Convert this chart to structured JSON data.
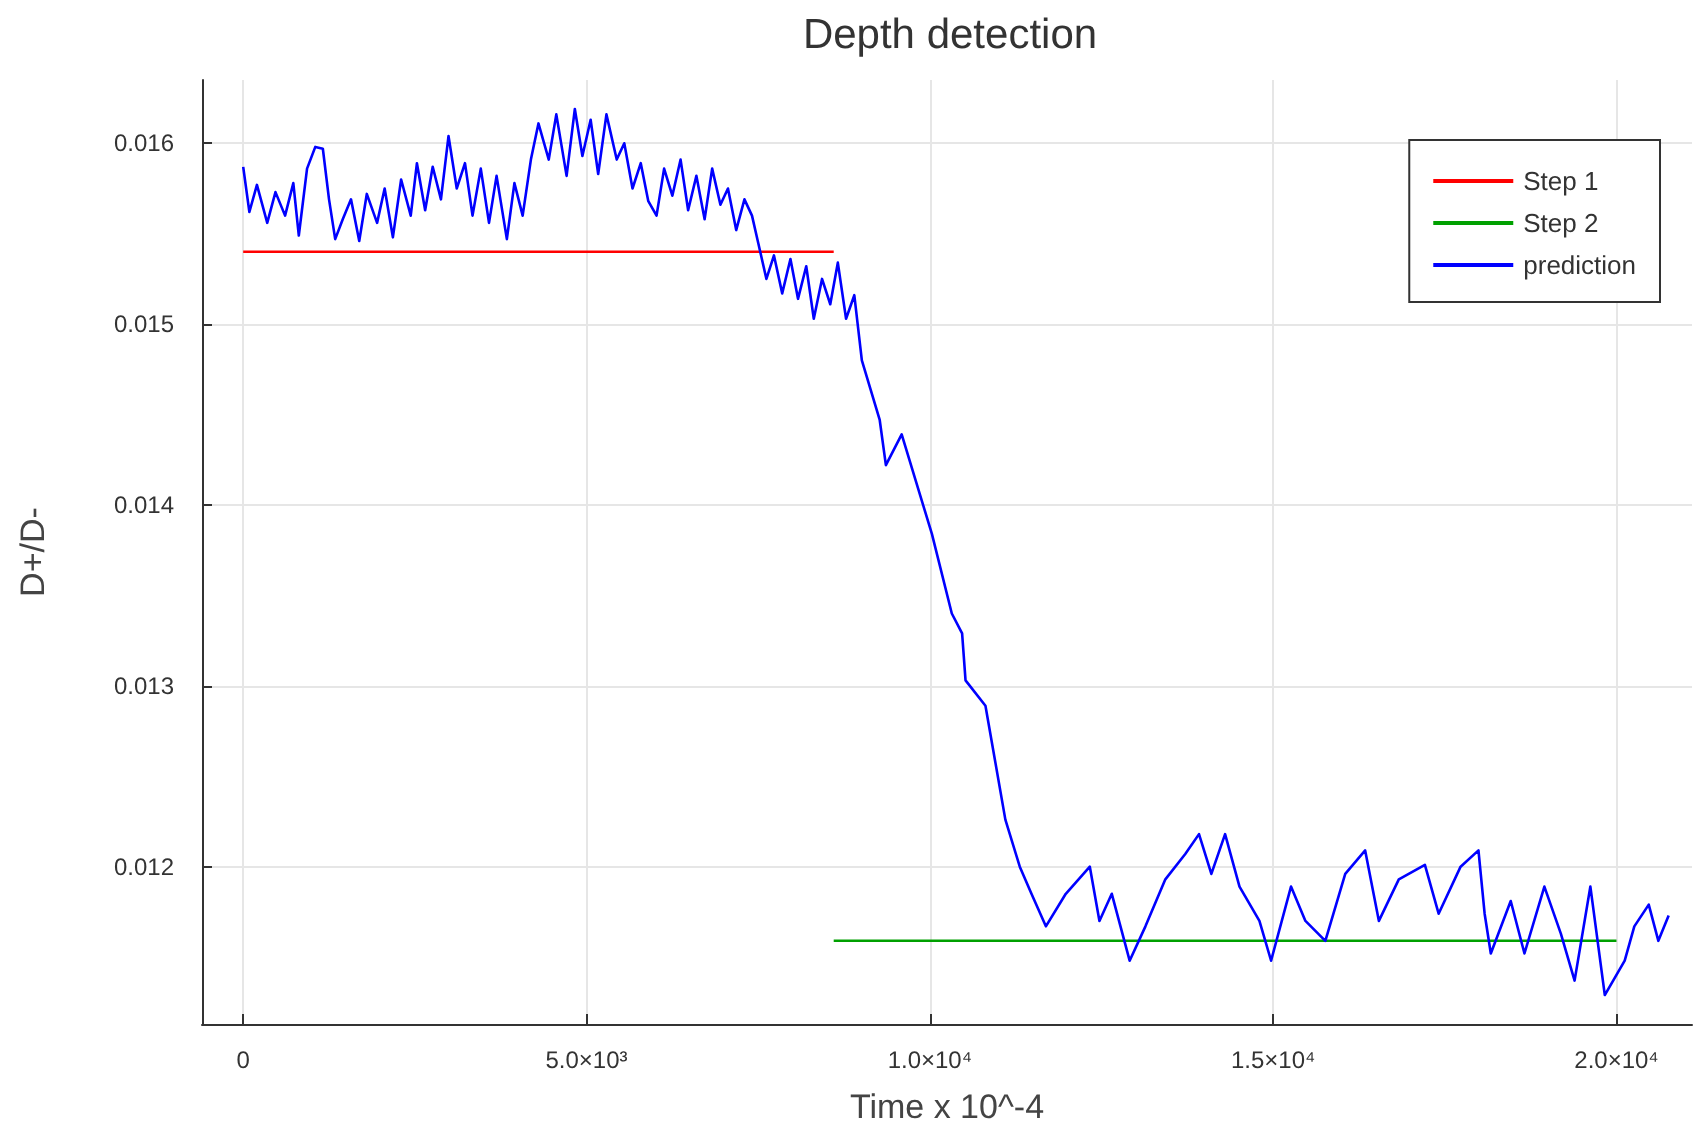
{
  "chart_data": {
    "type": "line",
    "title": "Depth detection",
    "xlabel": "Time x 10^-4",
    "ylabel": "D+/D-",
    "xlim": [
      -600,
      21100
    ],
    "ylim": [
      0.01113,
      0.01635
    ],
    "xticks": [
      0,
      {
        "value": 5000,
        "label": "5.0×10³"
      },
      {
        "value": 10000,
        "label": "1.0×10⁴"
      },
      {
        "value": 15000,
        "label": "1.5×10⁴"
      },
      {
        "value": 20000,
        "label": "2.0×10⁴"
      }
    ],
    "yticks": [
      0.012,
      0.013,
      0.014,
      0.015,
      0.016
    ],
    "grid": true,
    "legend": "top right",
    "marker": "none",
    "series": [
      {
        "name": "Step 1",
        "color": "#ff0000",
        "x": [
          0,
          8600
        ],
        "values": [
          0.0154,
          0.0154
        ]
      },
      {
        "name": "Step 2",
        "color": "#00a000",
        "x": [
          8600,
          20000
        ],
        "values": [
          0.01159,
          0.01159
        ]
      },
      {
        "name": "prediction",
        "color": "#0000ff",
        "x": [
          0,
          90,
          200,
          350,
          470,
          610,
          730,
          810,
          930,
          1050,
          1160,
          1250,
          1340,
          1450,
          1570,
          1690,
          1800,
          1950,
          2060,
          2180,
          2300,
          2440,
          2530,
          2650,
          2760,
          2880,
          2990,
          3110,
          3230,
          3340,
          3460,
          3580,
          3690,
          3840,
          3950,
          4070,
          4190,
          4300,
          4450,
          4560,
          4710,
          4830,
          4940,
          5060,
          5170,
          5290,
          5440,
          5550,
          5670,
          5790,
          5900,
          6020,
          6130,
          6250,
          6370,
          6480,
          6600,
          6720,
          6830,
          6950,
          7060,
          7180,
          7300,
          7410,
          7500,
          7620,
          7730,
          7850,
          7970,
          8080,
          8200,
          8310,
          8430,
          8550,
          8660,
          8780,
          8900,
          9010,
          9270,
          9360,
          9590,
          10030,
          10320,
          10470,
          10520,
          10810,
          11100,
          11310,
          11480,
          11690,
          11980,
          12330,
          12470,
          12650,
          12910,
          13140,
          13430,
          13720,
          13920,
          14100,
          14300,
          14510,
          14800,
          14970,
          15260,
          15470,
          15760,
          16050,
          16340,
          16540,
          16830,
          17210,
          17410,
          17730,
          17990,
          18080,
          18170,
          18460,
          18660,
          18950,
          19190,
          19390,
          19620,
          19830,
          20120,
          20260,
          20470,
          20610,
          20760
        ],
        "values": [
          0.01587,
          0.01562,
          0.01577,
          0.01556,
          0.01573,
          0.0156,
          0.01578,
          0.01549,
          0.01586,
          0.01598,
          0.01597,
          0.01569,
          0.01547,
          0.01558,
          0.01569,
          0.01546,
          0.01572,
          0.01556,
          0.01575,
          0.01548,
          0.0158,
          0.0156,
          0.01589,
          0.01563,
          0.01587,
          0.01569,
          0.01604,
          0.01575,
          0.01589,
          0.0156,
          0.01586,
          0.01556,
          0.01582,
          0.01547,
          0.01578,
          0.0156,
          0.01591,
          0.01611,
          0.01591,
          0.01616,
          0.01582,
          0.01619,
          0.01593,
          0.01613,
          0.01583,
          0.01616,
          0.01591,
          0.016,
          0.01575,
          0.01589,
          0.01568,
          0.0156,
          0.01586,
          0.01571,
          0.01591,
          0.01563,
          0.01582,
          0.01558,
          0.01586,
          0.01566,
          0.01575,
          0.01552,
          0.01569,
          0.0156,
          0.01545,
          0.01525,
          0.01538,
          0.01517,
          0.01536,
          0.01514,
          0.01532,
          0.01503,
          0.01525,
          0.01511,
          0.01534,
          0.01503,
          0.01516,
          0.0148,
          0.01447,
          0.01422,
          0.01439,
          0.01384,
          0.0134,
          0.01329,
          0.01303,
          0.01289,
          0.01226,
          0.012,
          0.01185,
          0.01167,
          0.01185,
          0.012,
          0.0117,
          0.01185,
          0.01148,
          0.01167,
          0.01193,
          0.01207,
          0.01218,
          0.01196,
          0.01218,
          0.01189,
          0.0117,
          0.01148,
          0.01189,
          0.0117,
          0.01159,
          0.01196,
          0.01209,
          0.0117,
          0.01193,
          0.01201,
          0.01174,
          0.012,
          0.01209,
          0.01174,
          0.01152,
          0.01181,
          0.01152,
          0.01189,
          0.01163,
          0.01137,
          0.01189,
          0.01129,
          0.01148,
          0.01167,
          0.01179,
          0.01159,
          0.01173
        ]
      }
    ]
  }
}
